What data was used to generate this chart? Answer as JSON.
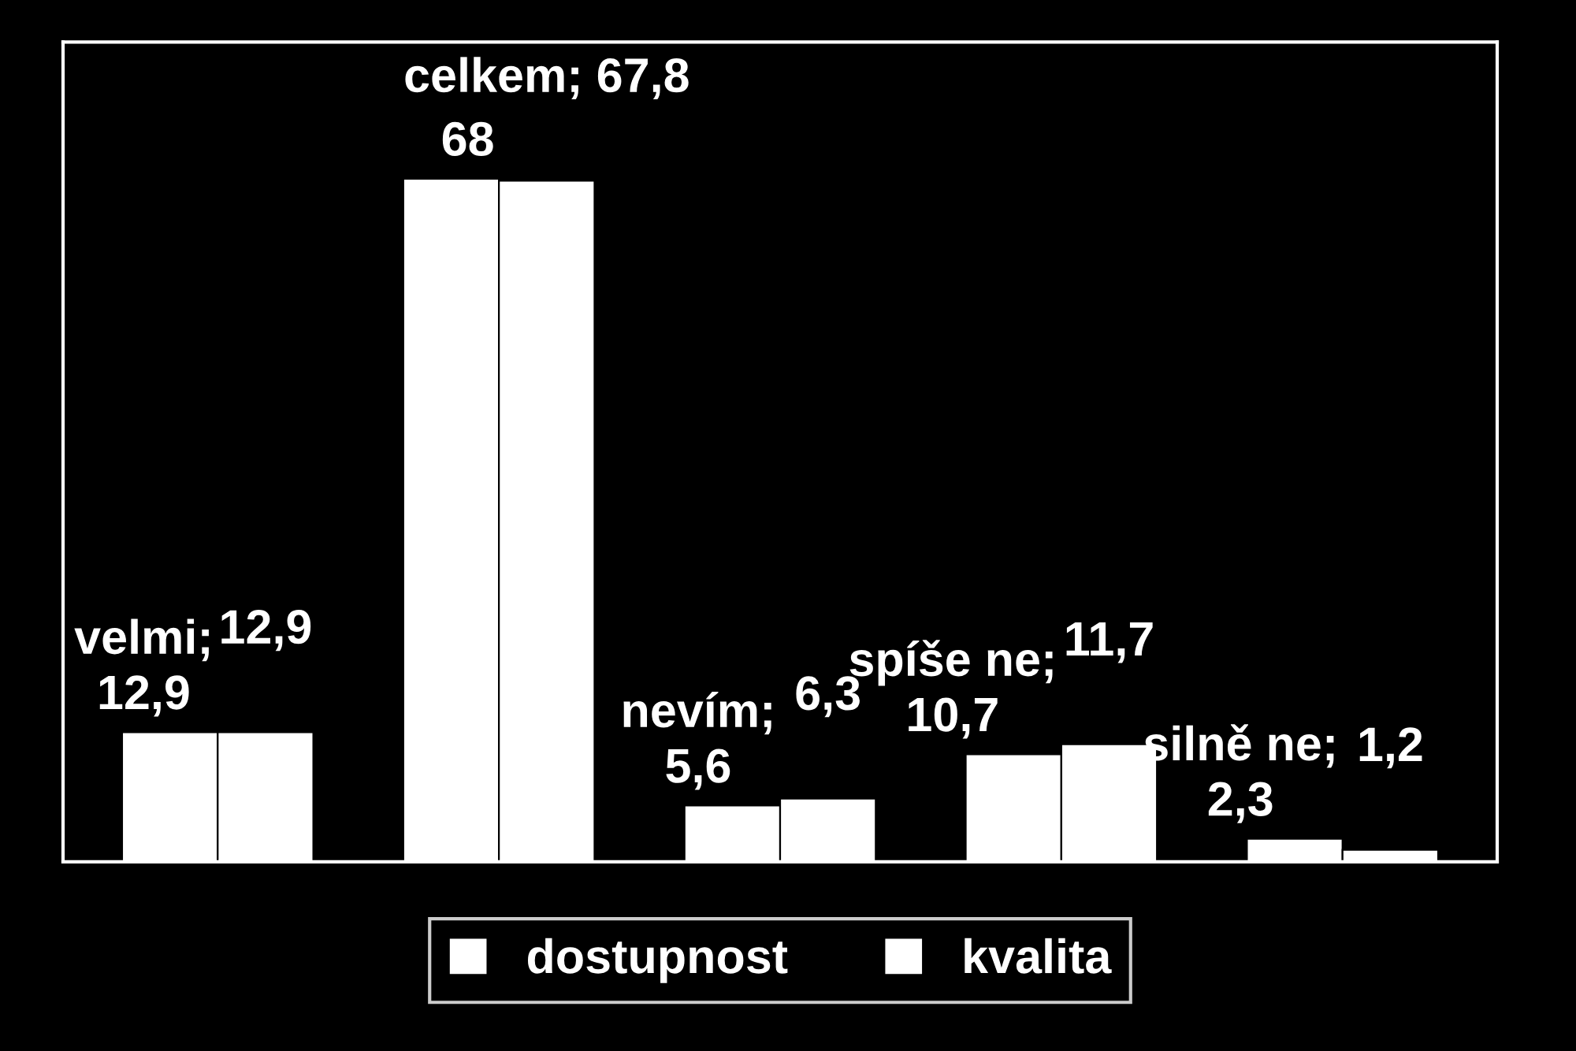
{
  "chart_data": {
    "type": "bar",
    "categories": [
      null,
      null,
      null,
      null,
      null
    ],
    "series": [
      {
        "name": "dostupnost",
        "color": "#ffffff",
        "values": [
          12.9,
          68,
          5.6,
          10.7,
          2.3
        ],
        "value_labels": [
          "velmi;\n12,9",
          "68",
          "nevím;\n5,6",
          "spíše ne;\n10,7",
          "silně ne;\n2,3"
        ]
      },
      {
        "name": "kvalita",
        "color": "#ffffff",
        "values": [
          12.9,
          67.8,
          6.3,
          11.7,
          1.2
        ],
        "value_labels": [
          "12,9",
          "celkem; 67,8",
          "6,3",
          "11,7",
          "1,2"
        ]
      }
    ],
    "grid": false,
    "legend": "bottom",
    "tick_labels": false
  }
}
